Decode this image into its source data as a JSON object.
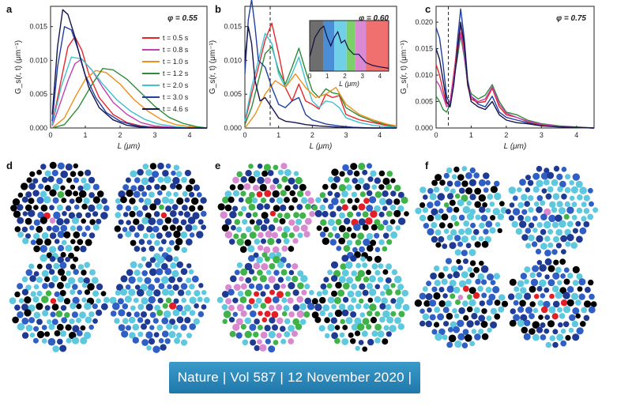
{
  "panels": {
    "a": "a",
    "b": "b",
    "c": "c",
    "d": "d",
    "e": "e",
    "f": "f"
  },
  "chart_data": [
    {
      "id": "a",
      "type": "line",
      "annotation": "φ = 0.55",
      "xlabel": "L (μm)",
      "ylabel": "G_s(r, t) (μm⁻¹)",
      "xlim": [
        0,
        4.5
      ],
      "ylim": [
        0,
        0.018
      ],
      "xticks": [
        0,
        1,
        2,
        3,
        4
      ],
      "yticks": [
        0,
        0.005,
        0.01,
        0.015
      ],
      "ytick_labels": [
        "0.000",
        "0.005",
        "0.010",
        "0.015"
      ],
      "legend_position": "top-right",
      "series": [
        {
          "name": "t = 0.5 s",
          "color": "#e8262a",
          "x": [
            0.05,
            0.3,
            0.5,
            0.7,
            0.9,
            1.1,
            1.4,
            1.8,
            2.2,
            2.6,
            3.0,
            3.5,
            4.0,
            4.5
          ],
          "y": [
            0.0005,
            0.007,
            0.012,
            0.0135,
            0.0115,
            0.008,
            0.0045,
            0.002,
            0.0008,
            0.0003,
            0.0001,
            0,
            0,
            0
          ]
        },
        {
          "name": "t = 0.8 s",
          "color": "#c040b0",
          "x": [
            0.05,
            0.3,
            0.5,
            0.7,
            0.9,
            1.2,
            1.5,
            1.8,
            2.2,
            2.6,
            3.0,
            3.5,
            4.0,
            4.5
          ],
          "y": [
            0.0003,
            0.004,
            0.007,
            0.0095,
            0.0102,
            0.0085,
            0.006,
            0.0038,
            0.002,
            0.0008,
            0.0003,
            0.0001,
            0,
            0
          ]
        },
        {
          "name": "t = 1.0 s",
          "color": "#f0901a",
          "x": [
            0.05,
            0.4,
            0.7,
            1.0,
            1.3,
            1.6,
            2.0,
            2.4,
            2.8,
            3.2,
            3.6,
            4.0,
            4.5
          ],
          "y": [
            0,
            0.0015,
            0.0045,
            0.0072,
            0.0085,
            0.0082,
            0.0065,
            0.0042,
            0.0025,
            0.0012,
            0.0005,
            0.0002,
            0
          ]
        },
        {
          "name": "t = 1.2 s",
          "color": "#2e8b3a",
          "x": [
            0.05,
            0.4,
            0.8,
            1.2,
            1.5,
            1.8,
            2.2,
            2.6,
            3.0,
            3.4,
            3.8,
            4.2,
            4.5
          ],
          "y": [
            0,
            0.0005,
            0.003,
            0.0065,
            0.0088,
            0.0086,
            0.0072,
            0.0052,
            0.0032,
            0.0016,
            0.0007,
            0.0002,
            0
          ]
        },
        {
          "name": "t = 2.0 s",
          "color": "#40c0d0",
          "x": [
            0.05,
            0.3,
            0.6,
            0.9,
            1.2,
            1.5,
            1.9,
            2.3,
            2.7,
            3.1,
            3.6,
            4.0,
            4.5
          ],
          "y": [
            0.0005,
            0.006,
            0.0105,
            0.0102,
            0.0085,
            0.0065,
            0.0042,
            0.0025,
            0.0013,
            0.0006,
            0.0002,
            0,
            0
          ]
        },
        {
          "name": "t = 3.0 s",
          "color": "#2040a0",
          "x": [
            0.05,
            0.2,
            0.4,
            0.6,
            0.8,
            1.0,
            1.3,
            1.6,
            2.0,
            2.4,
            2.8,
            3.2,
            4.0,
            4.5
          ],
          "y": [
            0.001,
            0.009,
            0.015,
            0.0145,
            0.0115,
            0.0078,
            0.0045,
            0.0023,
            0.001,
            0.0004,
            0.0001,
            0,
            0,
            0
          ]
        },
        {
          "name": "t = 4.6 s",
          "color": "#151550",
          "x": [
            0.05,
            0.2,
            0.35,
            0.5,
            0.7,
            0.9,
            1.1,
            1.4,
            1.8,
            2.2,
            2.6,
            3.0,
            4.0,
            4.5
          ],
          "y": [
            0.002,
            0.012,
            0.0175,
            0.0168,
            0.0135,
            0.0095,
            0.006,
            0.003,
            0.0012,
            0.0004,
            0.0001,
            0,
            0,
            0
          ]
        }
      ]
    },
    {
      "id": "b",
      "type": "line",
      "annotation": "φ = 0.60",
      "xlabel": "L (μm)",
      "ylabel": "G_s(r, t) (μm⁻¹)",
      "xlim": [
        0,
        4.5
      ],
      "ylim": [
        0,
        0.018
      ],
      "xticks": [
        0,
        1,
        2,
        3,
        4
      ],
      "yticks": [
        0,
        0.005,
        0.01,
        0.015
      ],
      "ytick_labels": [
        "0.000",
        "0.005",
        "0.010",
        "0.015"
      ],
      "dashed_line_x": 0.75,
      "inset": {
        "xlabel": "L (μm)",
        "xlim": [
          0,
          4.5
        ],
        "xticks": [
          0,
          1,
          2,
          3,
          4
        ],
        "bands": [
          {
            "from": 0,
            "to": 0.8,
            "color": "#6e6e6e"
          },
          {
            "from": 0.8,
            "to": 1.4,
            "color": "#4a8fd6"
          },
          {
            "from": 1.4,
            "to": 2.1,
            "color": "#6fd0e8"
          },
          {
            "from": 2.1,
            "to": 2.6,
            "color": "#7cd06a"
          },
          {
            "from": 2.6,
            "to": 3.2,
            "color": "#d98ad2"
          },
          {
            "from": 3.2,
            "to": 4.5,
            "color": "#f07070"
          }
        ],
        "curve_x": [
          0,
          0.3,
          0.6,
          0.8,
          1.0,
          1.2,
          1.4,
          1.6,
          1.8,
          2.0,
          2.2,
          2.5,
          2.8,
          3.2,
          3.6,
          4.0,
          4.5
        ],
        "curve_y": [
          0.005,
          0.012,
          0.015,
          0.016,
          0.012,
          0.009,
          0.012,
          0.014,
          0.01,
          0.011,
          0.008,
          0.006,
          0.006,
          0.003,
          0.002,
          0.0015,
          0.001
        ]
      },
      "series": [
        {
          "name": "",
          "color": "#e8262a",
          "x": [
            0,
            0.2,
            0.4,
            0.6,
            0.8,
            1.0,
            1.2,
            1.4,
            1.6,
            1.8,
            2.0,
            2.2,
            2.4,
            2.6,
            2.8,
            3.0,
            3.4,
            3.8,
            4.2,
            4.5
          ],
          "y": [
            0.0008,
            0.005,
            0.009,
            0.013,
            0.0155,
            0.011,
            0.006,
            0.004,
            0.0065,
            0.004,
            0.0035,
            0.0028,
            0.005,
            0.0045,
            0.0048,
            0.002,
            0.0012,
            0.0008,
            0.0004,
            0.0002
          ]
        },
        {
          "name": "",
          "color": "#2e8b3a",
          "x": [
            0,
            0.2,
            0.4,
            0.6,
            0.8,
            1.0,
            1.2,
            1.4,
            1.6,
            1.8,
            2.0,
            2.2,
            2.4,
            2.6,
            2.8,
            3.0,
            3.4,
            3.8,
            4.2,
            4.5
          ],
          "y": [
            0.0005,
            0.003,
            0.007,
            0.011,
            0.012,
            0.0085,
            0.0065,
            0.009,
            0.0118,
            0.0085,
            0.0055,
            0.0045,
            0.0058,
            0.0052,
            0.005,
            0.003,
            0.0018,
            0.001,
            0.0005,
            0.0003
          ]
        },
        {
          "name": "",
          "color": "#40c0d0",
          "x": [
            0,
            0.2,
            0.4,
            0.6,
            0.8,
            1.0,
            1.2,
            1.4,
            1.6,
            1.8,
            2.0,
            2.2,
            2.4,
            2.6,
            2.8,
            3.0,
            3.4,
            3.8,
            4.2,
            4.5
          ],
          "y": [
            0.001,
            0.006,
            0.01,
            0.014,
            0.0125,
            0.008,
            0.006,
            0.008,
            0.0105,
            0.007,
            0.004,
            0.003,
            0.004,
            0.0038,
            0.003,
            0.0015,
            0.0008,
            0.0004,
            0.0002,
            0.0001
          ]
        },
        {
          "name": "",
          "color": "#f0901a",
          "x": [
            0,
            0.3,
            0.6,
            0.9,
            1.2,
            1.5,
            1.8,
            2.1,
            2.4,
            2.7,
            3.0,
            3.4,
            3.8,
            4.2,
            4.5
          ],
          "y": [
            0,
            0.002,
            0.005,
            0.007,
            0.006,
            0.008,
            0.006,
            0.0045,
            0.005,
            0.006,
            0.0035,
            0.002,
            0.0012,
            0.0006,
            0.0003
          ]
        },
        {
          "name": "",
          "color": "#2040a0",
          "x": [
            0,
            0.1,
            0.2,
            0.3,
            0.4,
            0.6,
            0.8,
            1.0,
            1.2,
            1.4,
            1.6,
            1.8,
            2.0,
            2.4,
            2.8,
            3.2,
            3.8,
            4.5
          ],
          "y": [
            0.008,
            0.016,
            0.019,
            0.015,
            0.01,
            0.009,
            0.006,
            0.0035,
            0.003,
            0.004,
            0.0045,
            0.002,
            0.0012,
            0.0006,
            0.0003,
            0.0001,
            0,
            0
          ]
        },
        {
          "name": "",
          "color": "#151550",
          "x": [
            0,
            0.1,
            0.2,
            0.3,
            0.45,
            0.6,
            0.8,
            1.0,
            1.2,
            1.5,
            1.8,
            2.2,
            2.8,
            3.5,
            4.5
          ],
          "y": [
            0.01,
            0.015,
            0.0125,
            0.007,
            0.004,
            0.0045,
            0.003,
            0.0015,
            0.001,
            0.0008,
            0.0005,
            0.0003,
            0.0001,
            0,
            0
          ]
        }
      ]
    },
    {
      "id": "c",
      "type": "line",
      "annotation": "φ = 0.75",
      "xlabel": "L (μm)",
      "ylabel": "G_s(r, t) (μm⁻¹)",
      "xlim": [
        0,
        4.5
      ],
      "ylim": [
        0,
        0.023
      ],
      "xticks": [
        0,
        1,
        2,
        3,
        4
      ],
      "yticks": [
        0,
        0.005,
        0.01,
        0.015,
        0.02
      ],
      "ytick_labels": [
        "0.000",
        "0.005",
        "0.010",
        "0.015",
        "0.020"
      ],
      "dashed_line_x": 0.35,
      "series": [
        {
          "name": "",
          "color": "#2040a0",
          "x": [
            0,
            0.1,
            0.2,
            0.3,
            0.4,
            0.5,
            0.6,
            0.7,
            0.8,
            0.9,
            1.0,
            1.2,
            1.4,
            1.6,
            1.8,
            2.0,
            2.3,
            2.6,
            3.0,
            3.5,
            4.0,
            4.5
          ],
          "y": [
            0.019,
            0.017,
            0.012,
            0.006,
            0.0045,
            0.009,
            0.016,
            0.0225,
            0.017,
            0.009,
            0.006,
            0.0045,
            0.004,
            0.006,
            0.003,
            0.002,
            0.0015,
            0.001,
            0.0005,
            0.0003,
            0.0001,
            0
          ]
        },
        {
          "name": "",
          "color": "#e8262a",
          "x": [
            0,
            0.1,
            0.2,
            0.3,
            0.4,
            0.5,
            0.6,
            0.7,
            0.8,
            0.9,
            1.0,
            1.2,
            1.4,
            1.6,
            1.8,
            2.0,
            2.3,
            2.6,
            3.0,
            3.5,
            4.0,
            4.5
          ],
          "y": [
            0.012,
            0.01,
            0.007,
            0.0045,
            0.005,
            0.01,
            0.015,
            0.0195,
            0.0145,
            0.008,
            0.0055,
            0.0048,
            0.005,
            0.0075,
            0.004,
            0.0025,
            0.002,
            0.0012,
            0.0006,
            0.0003,
            0.0001,
            0
          ]
        },
        {
          "name": "",
          "color": "#2e8b3a",
          "x": [
            0,
            0.1,
            0.2,
            0.3,
            0.4,
            0.5,
            0.6,
            0.7,
            0.8,
            0.9,
            1.0,
            1.2,
            1.4,
            1.6,
            1.8,
            2.0,
            2.3,
            2.6,
            3.0,
            3.5,
            4.0,
            4.5
          ],
          "y": [
            0.006,
            0.005,
            0.0035,
            0.003,
            0.0045,
            0.009,
            0.013,
            0.0175,
            0.0135,
            0.0085,
            0.0065,
            0.0055,
            0.0062,
            0.0082,
            0.005,
            0.003,
            0.0025,
            0.0015,
            0.0008,
            0.0004,
            0.0002,
            0
          ]
        },
        {
          "name": "",
          "color": "#c040b0",
          "x": [
            0,
            0.1,
            0.2,
            0.3,
            0.4,
            0.5,
            0.6,
            0.7,
            0.8,
            0.9,
            1.0,
            1.2,
            1.4,
            1.6,
            1.8,
            2.0,
            2.3,
            2.6,
            3.0,
            3.5,
            4.0,
            4.5
          ],
          "y": [
            0.009,
            0.008,
            0.006,
            0.004,
            0.0048,
            0.0095,
            0.014,
            0.018,
            0.014,
            0.0085,
            0.006,
            0.005,
            0.0055,
            0.0078,
            0.0045,
            0.0028,
            0.002,
            0.0013,
            0.0007,
            0.0003,
            0.0001,
            0
          ]
        },
        {
          "name": "",
          "color": "#151550",
          "x": [
            0,
            0.1,
            0.2,
            0.3,
            0.4,
            0.5,
            0.6,
            0.7,
            0.8,
            0.9,
            1.0,
            1.2,
            1.4,
            1.6,
            1.8,
            2.0,
            2.3,
            2.6,
            3.0,
            3.5,
            4.0,
            4.5
          ],
          "y": [
            0.015,
            0.013,
            0.009,
            0.005,
            0.004,
            0.008,
            0.014,
            0.02,
            0.016,
            0.0085,
            0.005,
            0.004,
            0.0035,
            0.005,
            0.0025,
            0.0015,
            0.001,
            0.0008,
            0.0004,
            0.0002,
            0.0001,
            0
          ]
        }
      ]
    }
  ],
  "particle_panels": {
    "colors": {
      "black": "#000000",
      "dark_blue": "#1f3a93",
      "blue": "#2f5fc4",
      "light_blue": "#5ec8de",
      "green": "#3fb34a",
      "pink": "#d88ad0",
      "red": "#e41e26"
    }
  },
  "footer": {
    "text": "Nature | Vol 587 | 12 November 2020 |"
  }
}
